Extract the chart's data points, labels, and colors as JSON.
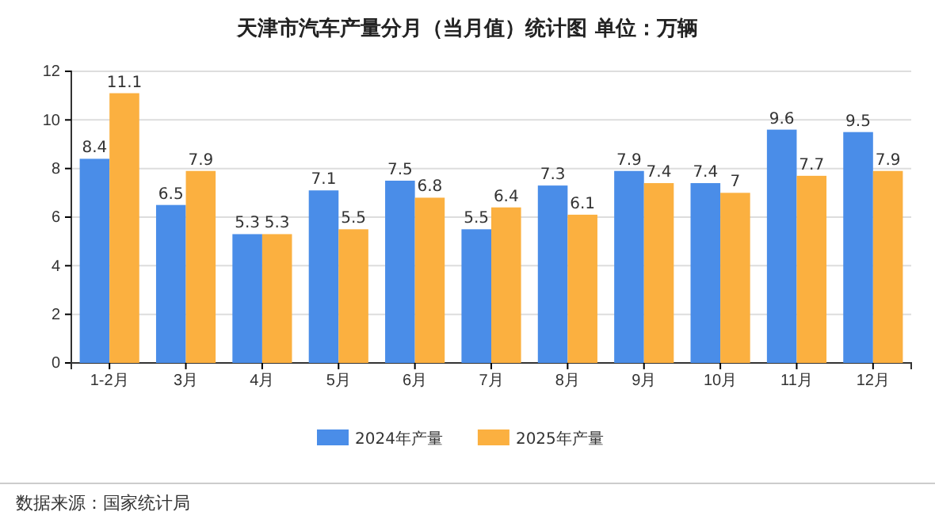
{
  "chart_data": {
    "type": "bar",
    "title": "天津市汽车产量分月（当月值）统计图 单位：万辆",
    "categories": [
      "1-2月",
      "3月",
      "4月",
      "5月",
      "6月",
      "7月",
      "8月",
      "9月",
      "10月",
      "11月",
      "12月"
    ],
    "series": [
      {
        "name": "2024年产量",
        "color": "#4a8de8",
        "values": [
          8.4,
          6.5,
          5.3,
          7.1,
          7.5,
          5.5,
          7.3,
          7.9,
          7.4,
          9.6,
          9.5
        ]
      },
      {
        "name": "2025年产量",
        "color": "#fbb040",
        "values": [
          11.1,
          7.9,
          5.3,
          5.5,
          6.8,
          6.4,
          6.1,
          7.4,
          7,
          7.7,
          7.9
        ]
      }
    ],
    "ylim": [
      0,
      12
    ],
    "yticks": [
      0,
      2,
      4,
      6,
      8,
      10,
      12
    ],
    "grid": "y",
    "legend": "bottom",
    "data_labels": true,
    "annotations": [
      "数据来源：国家统计局"
    ]
  }
}
